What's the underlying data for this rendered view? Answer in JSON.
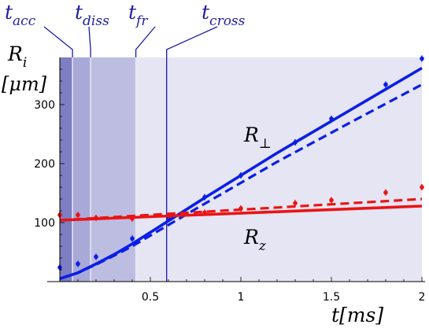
{
  "chart_data": {
    "type": "scatter",
    "xlim": [
      0,
      2
    ],
    "ylim": [
      0,
      380
    ],
    "x_ticks": [
      {
        "value": 0.5,
        "label": "0.5"
      },
      {
        "value": 1,
        "label": "1"
      },
      {
        "value": 1.5,
        "label": "1.5"
      },
      {
        "value": 2,
        "label": "2"
      }
    ],
    "y_ticks": [
      {
        "value": 100,
        "label": "100"
      },
      {
        "value": 200,
        "label": "200"
      },
      {
        "value": 300,
        "label": "300"
      }
    ],
    "xlabel": {
      "main": "t",
      "rest": "[ms]"
    },
    "ylabel": {
      "main": "R",
      "sub": "i",
      "unit": "[μm]"
    },
    "region_bounds": {
      "t_acc": 0.07,
      "t_diss": 0.17,
      "t_fr": 0.42,
      "t_cross": 0.59
    },
    "time_labels": [
      {
        "key": "t_acc",
        "main": "t",
        "sub": "acc"
      },
      {
        "key": "t_diss",
        "main": "t",
        "sub": "diss"
      },
      {
        "key": "t_fr",
        "main": "t",
        "sub": "fr"
      },
      {
        "key": "t_cross",
        "main": "t",
        "sub": "cross"
      }
    ],
    "series": [
      {
        "name": "R⊥",
        "label_main": "R",
        "label_sub": "⊥",
        "color": "#0a1ee6",
        "points": [
          [
            0,
            24
          ],
          [
            0.1,
            30
          ],
          [
            0.2,
            42
          ],
          [
            0.4,
            73
          ],
          [
            0.6,
            108
          ],
          [
            0.8,
            143
          ],
          [
            1.0,
            180
          ],
          [
            1.3,
            236
          ],
          [
            1.5,
            276
          ],
          [
            1.8,
            334
          ],
          [
            2.0,
            378
          ]
        ],
        "fit_solid": [
          [
            0,
            5
          ],
          [
            0.1,
            15
          ],
          [
            0.2,
            30
          ],
          [
            0.3,
            46
          ],
          [
            0.4,
            64
          ],
          [
            0.6,
            103
          ],
          [
            0.8,
            142
          ],
          [
            1.2,
            218
          ],
          [
            1.6,
            290
          ],
          [
            2.0,
            362
          ]
        ],
        "fit_dashed": [
          [
            0,
            5
          ],
          [
            0.1,
            15
          ],
          [
            0.2,
            29
          ],
          [
            0.3,
            44
          ],
          [
            0.4,
            60
          ],
          [
            0.6,
            96
          ],
          [
            0.8,
            132
          ],
          [
            1.2,
            203
          ],
          [
            1.6,
            269
          ],
          [
            2.0,
            334
          ]
        ]
      },
      {
        "name": "Rz",
        "label_main": "R",
        "label_sub": "z",
        "color": "#ea1414",
        "points": [
          [
            0,
            113
          ],
          [
            0.1,
            113
          ],
          [
            0.2,
            108
          ],
          [
            0.4,
            107
          ],
          [
            0.6,
            112
          ],
          [
            0.8,
            117
          ],
          [
            1.0,
            124
          ],
          [
            1.3,
            133
          ],
          [
            1.5,
            138
          ],
          [
            1.8,
            151
          ],
          [
            2.0,
            160
          ]
        ],
        "fit_solid": [
          [
            0,
            104
          ],
          [
            2.0,
            128
          ]
        ],
        "fit_dashed": [
          [
            0,
            104
          ],
          [
            2.0,
            140
          ]
        ]
      }
    ],
    "colors": {
      "plot_bg": "#e5e5f3",
      "region_fr": "#bdbde2",
      "region_diss": "#a9a9d8",
      "region_acc": "#7e7ec2",
      "label_color": "#2020a0"
    }
  }
}
